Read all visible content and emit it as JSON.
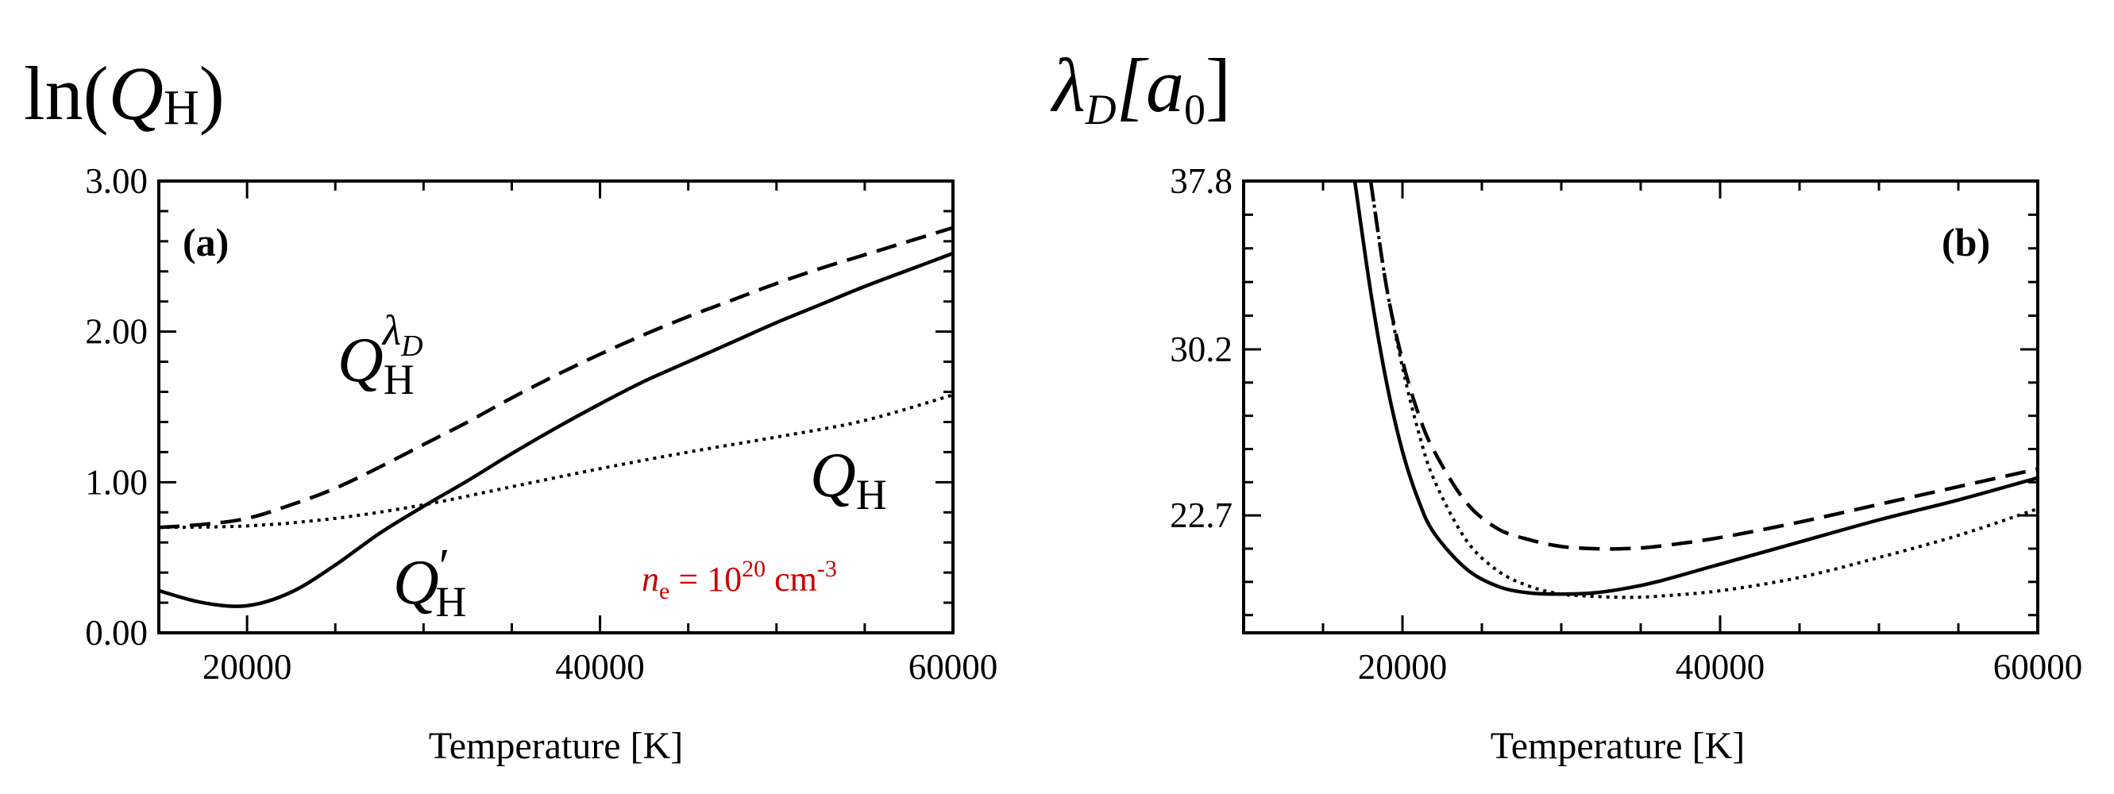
{
  "chart_data": [
    {
      "type": "line",
      "panel": "(a)",
      "ylabel_main": "ln(",
      "ylabel_sym": "Q",
      "ylabel_sub": "H",
      "ylabel_close": ")",
      "xlabel": "Temperature [K]",
      "xlim": [
        15000,
        60000
      ],
      "ylim": [
        0,
        3
      ],
      "xticks": [
        20000,
        40000,
        60000
      ],
      "xtick_labels": [
        "20000",
        "40000",
        "60000"
      ],
      "yticks": [
        0,
        1,
        2,
        3
      ],
      "ytick_labels": [
        "0.00",
        "1.00",
        "2.00",
        "3.00"
      ],
      "series": [
        {
          "name": "Q_H^lambda_D",
          "label_sym": "Q",
          "label_sub": "H",
          "label_sup": "λ",
          "label_sup_sub": "D",
          "style": "dashed",
          "x": [
            15000,
            17500,
            20000,
            22500,
            25000,
            27500,
            30000,
            32500,
            35000,
            37500,
            40000,
            42500,
            45000,
            47500,
            50000,
            52500,
            55000,
            57500,
            60000
          ],
          "y": [
            0.7,
            0.72,
            0.76,
            0.85,
            0.96,
            1.1,
            1.25,
            1.4,
            1.56,
            1.71,
            1.85,
            1.98,
            2.1,
            2.21,
            2.32,
            2.42,
            2.51,
            2.6,
            2.69
          ]
        },
        {
          "name": "Q_H_prime",
          "label_sym": "Q",
          "label_sub": "H",
          "label_prime": "′",
          "style": "solid",
          "x": [
            15000,
            17500,
            20000,
            22500,
            25000,
            27500,
            30000,
            32500,
            35000,
            37500,
            40000,
            42500,
            45000,
            47500,
            50000,
            52500,
            55000,
            57500,
            60000
          ],
          "y": [
            0.28,
            0.2,
            0.18,
            0.27,
            0.45,
            0.66,
            0.84,
            1.01,
            1.19,
            1.36,
            1.52,
            1.67,
            1.8,
            1.93,
            2.06,
            2.18,
            2.3,
            2.41,
            2.52
          ]
        },
        {
          "name": "Q_H",
          "label_sym": "Q",
          "label_sub": "H",
          "style": "dotted",
          "x": [
            15000,
            20000,
            25000,
            30000,
            35000,
            40000,
            45000,
            50000,
            55000,
            60000
          ],
          "y": [
            0.7,
            0.71,
            0.76,
            0.85,
            0.97,
            1.09,
            1.2,
            1.3,
            1.41,
            1.58
          ]
        }
      ],
      "annotation": {
        "n_sym": "n",
        "n_sub": "e",
        "eq": " = 10",
        "exp": "20",
        "unit": " cm",
        "unit_exp": "-3",
        "color": "#cc0000"
      }
    },
    {
      "type": "line",
      "panel": "(b)",
      "ylabel_main": "λ",
      "ylabel_sub": "D",
      "ylabel_bracket": "[a",
      "ylabel_bracket_sub": "0",
      "ylabel_close": "]",
      "xlabel": "Temperature [K]",
      "xlim": [
        10000,
        60000
      ],
      "ylim": [
        17.4,
        37.8
      ],
      "xticks": [
        20000,
        40000,
        60000
      ],
      "xtick_labels": [
        "20000",
        "40000",
        "60000"
      ],
      "yticks": [
        22.7,
        30.2,
        37.8
      ],
      "ytick_labels": [
        "22.7",
        "30.2",
        "37.8"
      ],
      "series": [
        {
          "name": "solid",
          "style": "solid",
          "x": [
            17000,
            18000,
            19000,
            20000,
            21000,
            22000,
            24000,
            26000,
            28000,
            30000,
            32000,
            34000,
            36000,
            40000,
            45000,
            50000,
            55000,
            60000
          ],
          "y": [
            37.8,
            32.8,
            28.7,
            25.6,
            23.4,
            21.9,
            20.3,
            19.5,
            19.2,
            19.15,
            19.2,
            19.4,
            19.7,
            20.5,
            21.5,
            22.5,
            23.4,
            24.4
          ]
        },
        {
          "name": "dashed",
          "style": "dashed",
          "x": [
            18000,
            19000,
            20000,
            21000,
            22000,
            24000,
            26000,
            28000,
            30000,
            32000,
            34000,
            36000,
            40000,
            45000,
            50000,
            55000,
            60000
          ],
          "y": [
            37.8,
            33.0,
            29.7,
            27.3,
            25.6,
            23.3,
            22.1,
            21.6,
            21.3,
            21.2,
            21.2,
            21.3,
            21.7,
            22.4,
            23.2,
            24.0,
            24.8
          ]
        },
        {
          "name": "dotted",
          "style": "dotted",
          "x": [
            18000,
            19000,
            20000,
            21000,
            22000,
            24000,
            26000,
            28000,
            30000,
            32000,
            34000,
            36000,
            40000,
            45000,
            50000,
            55000,
            60000
          ],
          "y": [
            37.8,
            33.0,
            29.4,
            26.5,
            24.3,
            21.6,
            20.2,
            19.5,
            19.15,
            19.05,
            19.0,
            19.05,
            19.3,
            19.9,
            20.8,
            21.8,
            23.0
          ]
        }
      ]
    }
  ]
}
